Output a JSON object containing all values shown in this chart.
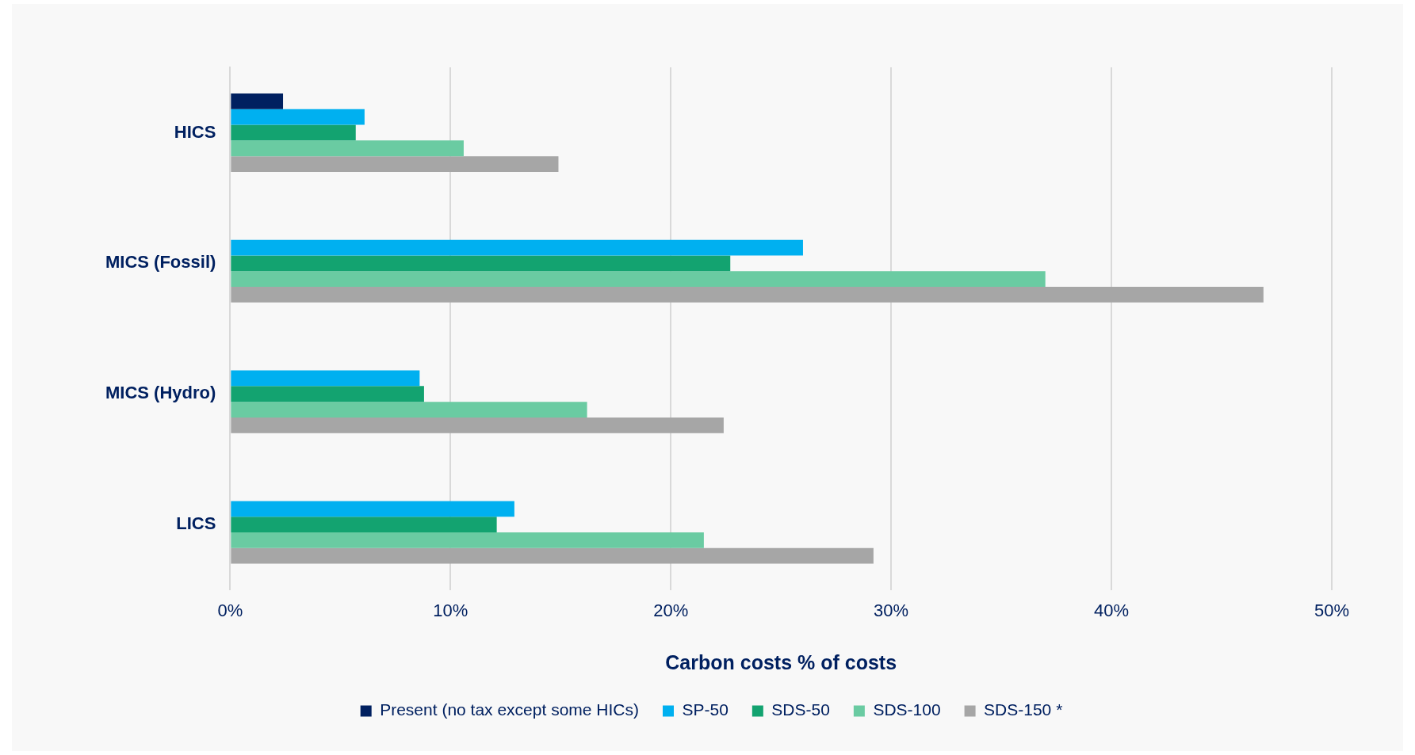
{
  "chart_data": {
    "type": "bar",
    "orientation": "horizontal",
    "xlabel": "Carbon costs % of costs",
    "categories": [
      "HICS",
      "MICS (Fossil)",
      "MICS (Hydro)",
      "LICS"
    ],
    "series": [
      {
        "name": "Present (no tax except some HICs)",
        "color": "#002060",
        "values": [
          2.4,
          null,
          null,
          null
        ]
      },
      {
        "name": "SP-50",
        "color": "#00b0f0",
        "values": [
          6.1,
          26.0,
          8.6,
          12.9
        ]
      },
      {
        "name": "SDS-50",
        "color": "#13a370",
        "values": [
          5.7,
          22.7,
          8.8,
          12.1
        ]
      },
      {
        "name": "SDS-100",
        "color": "#6acba2",
        "values": [
          10.6,
          37.0,
          16.2,
          21.5
        ]
      },
      {
        "name": "SDS-150 *",
        "color": "#a6a6a6",
        "values": [
          14.9,
          46.9,
          22.4,
          29.2
        ]
      }
    ],
    "xlim": [
      0,
      50
    ],
    "xticks": [
      {
        "value": 0,
        "label": "0%"
      },
      {
        "value": 10,
        "label": "10%"
      },
      {
        "value": 20,
        "label": "20%"
      },
      {
        "value": 30,
        "label": "30%"
      },
      {
        "value": 40,
        "label": "40%"
      },
      {
        "value": 50,
        "label": "50%"
      }
    ],
    "grid": "x",
    "legend": "bottom"
  }
}
